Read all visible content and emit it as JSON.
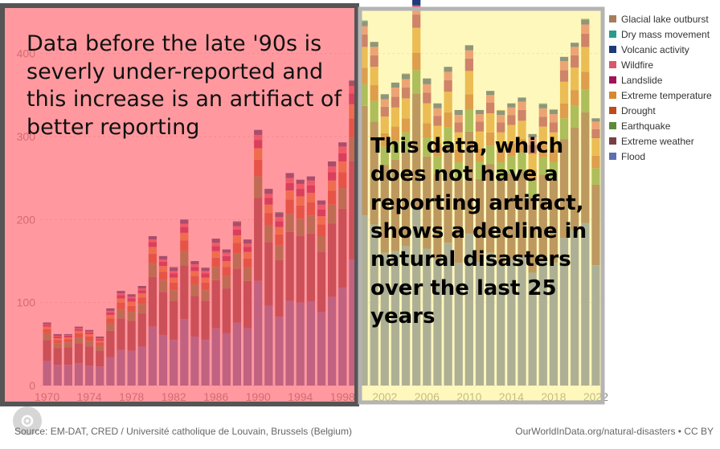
{
  "chart_data": {
    "type": "bar",
    "stacked": true,
    "xlabel": "",
    "ylabel": "",
    "ylim": [
      0,
      450
    ],
    "yticks": [
      0,
      100,
      200,
      300,
      400
    ],
    "x_tick_labels": [
      "1970",
      "1974",
      "1978",
      "1982",
      "1986",
      "1990",
      "1994",
      "1998",
      "2002",
      "2006",
      "2010",
      "2014",
      "2018",
      "2022"
    ],
    "legend_placement": "right",
    "years": [
      1970,
      1971,
      1972,
      1973,
      1974,
      1975,
      1976,
      1977,
      1978,
      1979,
      1980,
      1981,
      1982,
      1983,
      1984,
      1985,
      1986,
      1987,
      1988,
      1989,
      1990,
      1991,
      1992,
      1993,
      1994,
      1995,
      1996,
      1997,
      1998,
      1999,
      2000,
      2001,
      2002,
      2003,
      2004,
      2005,
      2006,
      2007,
      2008,
      2009,
      2010,
      2011,
      2012,
      2013,
      2014,
      2015,
      2016,
      2017,
      2018,
      2019,
      2020,
      2021,
      2022
    ],
    "totals": [
      76,
      60,
      62,
      71,
      67,
      57,
      93,
      114,
      110,
      120,
      180,
      156,
      143,
      200,
      150,
      142,
      177,
      164,
      198,
      176,
      308,
      237,
      209,
      256,
      248,
      252,
      222,
      270,
      293,
      368,
      440,
      414,
      351,
      365,
      376,
      465,
      370,
      340,
      384,
      332,
      410,
      332,
      355,
      332,
      340,
      347,
      303,
      340,
      333,
      396,
      413,
      442,
      322
    ],
    "series": [
      {
        "name": "Glacial lake outburst",
        "color": "#a57e5c",
        "values": [
          0,
          0,
          0,
          0,
          0,
          0,
          0,
          0,
          0,
          0,
          0,
          0,
          0,
          0,
          0,
          0,
          0,
          0,
          0,
          0,
          0,
          0,
          0,
          0,
          0,
          0,
          0,
          0,
          0,
          0,
          0,
          0,
          0,
          0,
          1,
          0,
          0,
          0,
          0,
          0,
          0,
          0,
          0,
          1,
          0,
          0,
          0,
          0,
          1,
          0,
          0,
          1,
          0
        ]
      },
      {
        "name": "Dry mass movement",
        "color": "#289c8a",
        "values": [
          0,
          0,
          0,
          0,
          0,
          0,
          0,
          0,
          0,
          0,
          0,
          0,
          1,
          0,
          0,
          0,
          0,
          0,
          1,
          0,
          0,
          0,
          1,
          0,
          0,
          0,
          0,
          0,
          0,
          1,
          1,
          0,
          0,
          0,
          0,
          1,
          0,
          0,
          0,
          0,
          0,
          0,
          0,
          0,
          0,
          0,
          0,
          1,
          0,
          0,
          0,
          0,
          0
        ]
      },
      {
        "name": "Volcanic activity",
        "color": "#1f3a7a",
        "values": [
          2,
          2,
          1,
          2,
          2,
          2,
          3,
          3,
          3,
          3,
          4,
          4,
          4,
          5,
          4,
          4,
          5,
          4,
          5,
          5,
          6,
          6,
          5,
          6,
          5,
          5,
          5,
          6,
          5,
          6,
          6,
          6,
          6,
          6,
          6,
          7,
          7,
          6,
          6,
          6,
          6,
          5,
          5,
          5,
          5,
          5,
          4,
          5,
          5,
          5,
          5,
          6,
          4
        ]
      },
      {
        "name": "Wildfire",
        "color": "#d9576e",
        "values": [
          1,
          1,
          1,
          1,
          1,
          1,
          2,
          2,
          2,
          2,
          3,
          3,
          3,
          4,
          3,
          3,
          4,
          4,
          4,
          4,
          6,
          5,
          5,
          6,
          6,
          6,
          6,
          7,
          8,
          9,
          10,
          10,
          9,
          11,
          10,
          11,
          10,
          9,
          10,
          9,
          10,
          9,
          9,
          9,
          9,
          10,
          9,
          10,
          10,
          11,
          10,
          11,
          9
        ]
      },
      {
        "name": "Landslide",
        "color": "#9e1456",
        "values": [
          2,
          2,
          2,
          2,
          2,
          2,
          3,
          4,
          4,
          4,
          6,
          5,
          5,
          7,
          5,
          5,
          6,
          6,
          7,
          6,
          10,
          8,
          7,
          9,
          9,
          9,
          8,
          10,
          10,
          13,
          15,
          14,
          12,
          13,
          13,
          16,
          13,
          12,
          14,
          12,
          15,
          12,
          13,
          12,
          12,
          13,
          11,
          12,
          12,
          14,
          15,
          16,
          11
        ]
      },
      {
        "name": "Extreme temperature",
        "color": "#d7892f",
        "values": [
          3,
          2,
          2,
          3,
          3,
          2,
          4,
          5,
          5,
          5,
          8,
          7,
          6,
          9,
          6,
          6,
          8,
          7,
          9,
          8,
          14,
          10,
          9,
          11,
          11,
          11,
          10,
          12,
          13,
          17,
          25,
          22,
          20,
          23,
          24,
          30,
          24,
          21,
          25,
          21,
          28,
          21,
          23,
          21,
          22,
          22,
          19,
          21,
          21,
          26,
          27,
          30,
          21
        ]
      },
      {
        "name": "Drought",
        "color": "#bd4b1c",
        "values": [
          5,
          4,
          4,
          5,
          5,
          4,
          6,
          8,
          7,
          8,
          12,
          10,
          9,
          13,
          10,
          9,
          11,
          11,
          13,
          11,
          20,
          15,
          13,
          17,
          16,
          16,
          14,
          17,
          19,
          23,
          20,
          19,
          16,
          17,
          17,
          21,
          17,
          16,
          18,
          15,
          19,
          15,
          16,
          15,
          16,
          16,
          14,
          16,
          15,
          18,
          19,
          21,
          15
        ]
      },
      {
        "name": "Earthquake",
        "color": "#5b8a3a",
        "values": [
          8,
          6,
          6,
          7,
          7,
          6,
          9,
          11,
          11,
          11,
          16,
          14,
          13,
          17,
          14,
          13,
          16,
          15,
          18,
          16,
          26,
          20,
          18,
          22,
          21,
          22,
          19,
          23,
          25,
          29,
          26,
          25,
          22,
          23,
          24,
          28,
          23,
          21,
          24,
          21,
          26,
          21,
          22,
          21,
          21,
          22,
          19,
          21,
          21,
          25,
          26,
          28,
          20
        ]
      },
      {
        "name": "Extreme weather",
        "color": "#7a3f45",
        "values": [
          25,
          20,
          21,
          24,
          23,
          19,
          32,
          38,
          36,
          40,
          60,
          52,
          47,
          65,
          49,
          47,
          58,
          54,
          65,
          57,
          100,
          77,
          68,
          83,
          80,
          82,
          72,
          88,
          95,
          118,
          132,
          124,
          106,
          110,
          113,
          138,
          111,
          103,
          115,
          100,
          123,
          100,
          107,
          100,
          102,
          104,
          91,
          102,
          100,
          119,
          124,
          133,
          97
        ]
      },
      {
        "name": "Flood",
        "color": "#5c6fb0",
        "values": [
          30,
          25,
          25,
          27,
          24,
          23,
          34,
          43,
          42,
          47,
          71,
          61,
          55,
          80,
          59,
          55,
          69,
          63,
          76,
          69,
          126,
          96,
          83,
          102,
          100,
          101,
          89,
          107,
          118,
          152,
          205,
          194,
          160,
          162,
          168,
          214,
          165,
          152,
          172,
          148,
          183,
          149,
          160,
          148,
          153,
          155,
          136,
          152,
          148,
          178,
          187,
          196,
          145
        ]
      }
    ]
  },
  "annotations": {
    "left": "Data before the late '90s is severly under-reported and this increase is an artifiact of better reporting",
    "right": "This data, which does not have a reporting artifact, shows a decline in natural disasters over the last 25 years"
  },
  "footer": {
    "source": "Source: EM-DAT, CRED / Université catholique de Louvain, Brussels (Belgium)",
    "credit": "OurWorldInData.org/natural-disasters • CC BY"
  },
  "colors": {
    "left_overlay": "#ff5a64",
    "left_border": "#555555",
    "right_overlay": "#fff27a",
    "right_border": "#b4b4b4"
  }
}
